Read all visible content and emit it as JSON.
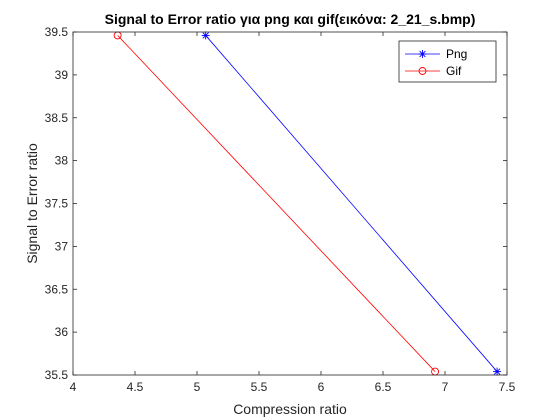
{
  "chart_data": {
    "type": "line",
    "title": "Signal to Error ratio για png και gif(εικόνα: 2_21_s.bmp)",
    "xlabel": "Compression ratio",
    "ylabel": "Signal to Error ratio",
    "xlim": [
      4,
      7.5
    ],
    "ylim": [
      35.5,
      39.5
    ],
    "xticks": [
      4,
      4.5,
      5,
      5.5,
      6,
      6.5,
      7,
      7.5
    ],
    "yticks": [
      35.5,
      36,
      36.5,
      37,
      37.5,
      38,
      38.5,
      39,
      39.5
    ],
    "xtick_labels": [
      "4",
      "4.5",
      "5",
      "5.5",
      "6",
      "6.5",
      "7",
      "7.5"
    ],
    "ytick_labels": [
      "35.5",
      "36",
      "36.5",
      "37",
      "37.5",
      "38",
      "38.5",
      "39",
      "39.5"
    ],
    "grid": false,
    "legend_position": "top-right",
    "series": [
      {
        "name": "Png",
        "color": "#0000ff",
        "marker": "asterisk",
        "x": [
          5.07,
          7.42
        ],
        "y": [
          39.46,
          35.54
        ]
      },
      {
        "name": "Gif",
        "color": "#ff0000",
        "marker": "circle",
        "x": [
          4.36,
          6.92
        ],
        "y": [
          39.46,
          35.54
        ]
      }
    ]
  }
}
